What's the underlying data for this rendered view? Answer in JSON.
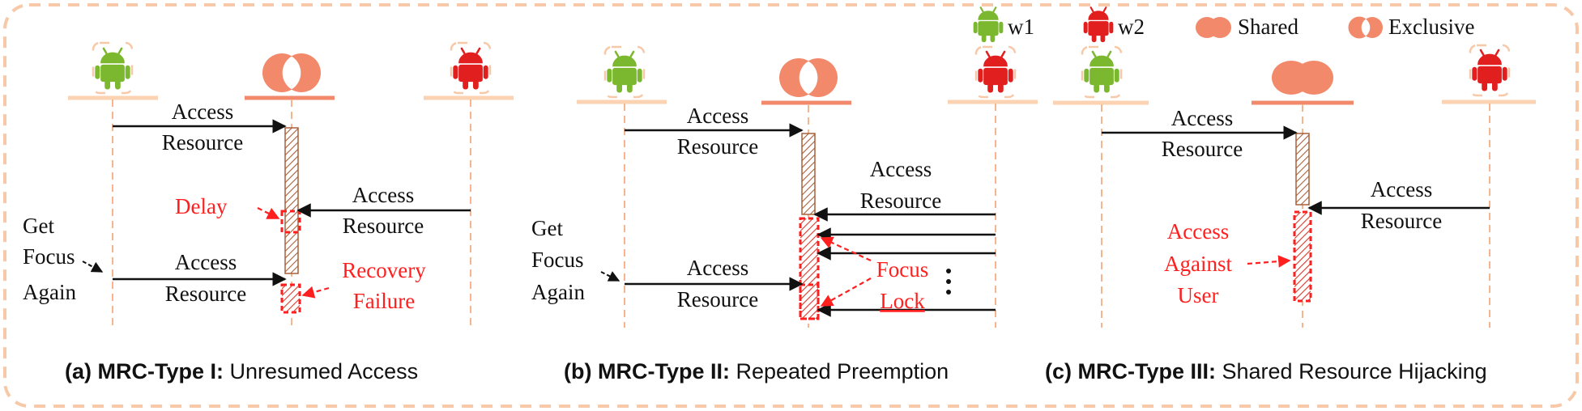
{
  "colors": {
    "border": "#f8c9a8",
    "w1": "#7cb82f",
    "w2": "#e21f1f",
    "resource": "#f2896b",
    "lifeline": "#f6b48f",
    "bar_fill": "#ffffff",
    "bar_stripe": "#b07050",
    "red_text": "#ff1f1f"
  },
  "legend": {
    "w1": "w1",
    "w2": "w2",
    "shared": "Shared",
    "exclusive": "Exclusive"
  },
  "panels": {
    "a": {
      "msg1": [
        "Access",
        "Resource"
      ],
      "msg2": [
        "Access",
        "Resource"
      ],
      "msg3": [
        "Access",
        "Resource"
      ],
      "focus": [
        "Get",
        "Focus",
        "Again"
      ],
      "delay": "Delay",
      "recovery": [
        "Recovery",
        "Failure"
      ],
      "cap_prefix": "(a) ",
      "cap_bold": "MRC-Type I:",
      "cap_rest": " Unresumed Access"
    },
    "b": {
      "msg1": [
        "Access",
        "Resource"
      ],
      "msg2": [
        "Access",
        "Resource"
      ],
      "msg3": [
        "Access",
        "Resource"
      ],
      "focus": [
        "Get",
        "Focus",
        "Again"
      ],
      "lock": [
        "Focus",
        "Lock"
      ],
      "cap_prefix": "(b) ",
      "cap_bold": "MRC-Type II:",
      "cap_rest": " Repeated Preemption"
    },
    "c": {
      "msg1": [
        "Access",
        "Resource"
      ],
      "msg2": [
        "Access",
        "Resource"
      ],
      "against": [
        "Access",
        "Against",
        "User"
      ],
      "cap_prefix": "(c) ",
      "cap_bold": "MRC-Type III:",
      "cap_rest": " Shared Resource Hijacking"
    }
  }
}
